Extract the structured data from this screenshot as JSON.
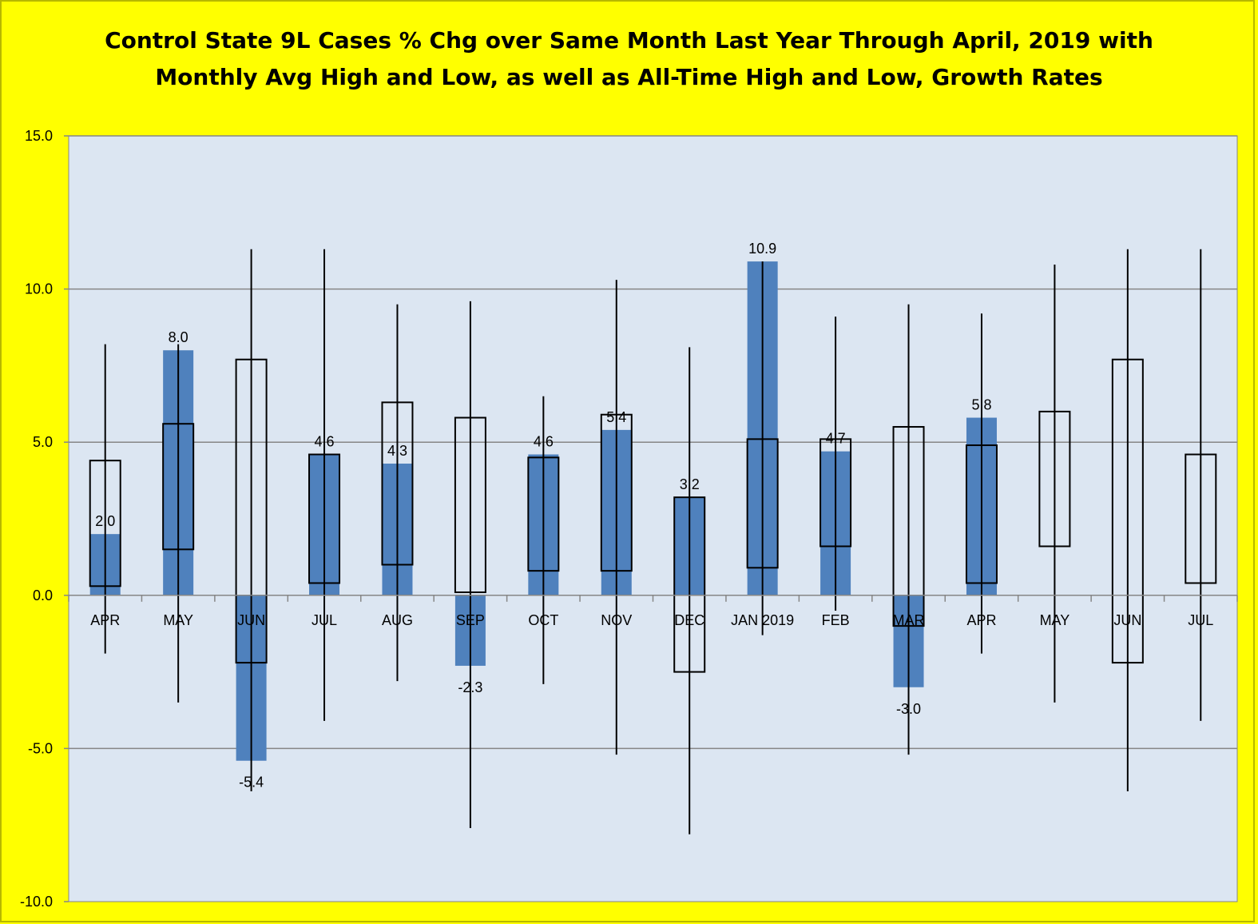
{
  "chart_data": {
    "type": "bar",
    "title_line1": "Control State 9L Cases % Chg over Same Month Last Year Through April, 2019 with",
    "title_line2": "Monthly Avg High and Low, as well as All-Time High and Low,  Growth Rates",
    "ylim": [
      -10,
      15
    ],
    "yticks": [
      "-10.0",
      "-5.0",
      "0.0",
      "5.0",
      "10.0",
      "15.0"
    ],
    "grid": true,
    "categories": [
      "APR",
      "MAY",
      "JUN",
      "JUL",
      "AUG",
      "SEP",
      "OCT",
      "NOV",
      "DEC",
      "JAN 2019",
      "FEB",
      "MAR",
      "APR",
      "MAY",
      "JUN",
      "JUL"
    ],
    "series": [
      {
        "type": "bar",
        "values": [
          2.0,
          8.0,
          -5.4,
          4.6,
          4.3,
          -2.3,
          4.6,
          5.4,
          3.2,
          10.9,
          4.7,
          -3.0,
          5.8,
          null,
          null,
          null
        ],
        "labels": [
          "2.0",
          "8.0",
          "-5.4",
          "4.6",
          "4.3",
          "-2.3",
          "4.6",
          "5.4",
          "3.2",
          "10.9",
          "4.7",
          "-3.0",
          "5.8",
          "",
          "",
          ""
        ]
      },
      {
        "type": "range-box",
        "avg_high": [
          4.4,
          5.6,
          7.7,
          4.6,
          6.3,
          5.8,
          4.5,
          5.9,
          3.2,
          5.1,
          5.1,
          5.5,
          4.9,
          6.0,
          7.7,
          4.6
        ],
        "avg_low": [
          0.3,
          1.5,
          -2.2,
          0.4,
          1.0,
          0.1,
          0.8,
          0.8,
          -2.5,
          0.9,
          1.6,
          -1.0,
          0.4,
          1.6,
          -2.2,
          0.4
        ]
      },
      {
        "type": "range-line",
        "all_time_high": [
          8.2,
          8.2,
          11.3,
          11.3,
          9.5,
          9.6,
          6.5,
          10.3,
          8.1,
          10.9,
          9.1,
          9.5,
          9.2,
          10.8,
          11.3,
          11.3
        ],
        "all_time_low": [
          -1.9,
          -3.5,
          -6.4,
          -4.1,
          -2.8,
          -7.6,
          -2.9,
          -5.2,
          -7.8,
          -1.3,
          -0.5,
          -5.2,
          -1.9,
          -3.5,
          -6.4,
          -4.1
        ]
      }
    ],
    "colors": {
      "bar": "#4f81bd",
      "plot_bg": "#dce6f2",
      "page_bg": "#ffff00",
      "grid": "#868686"
    }
  }
}
